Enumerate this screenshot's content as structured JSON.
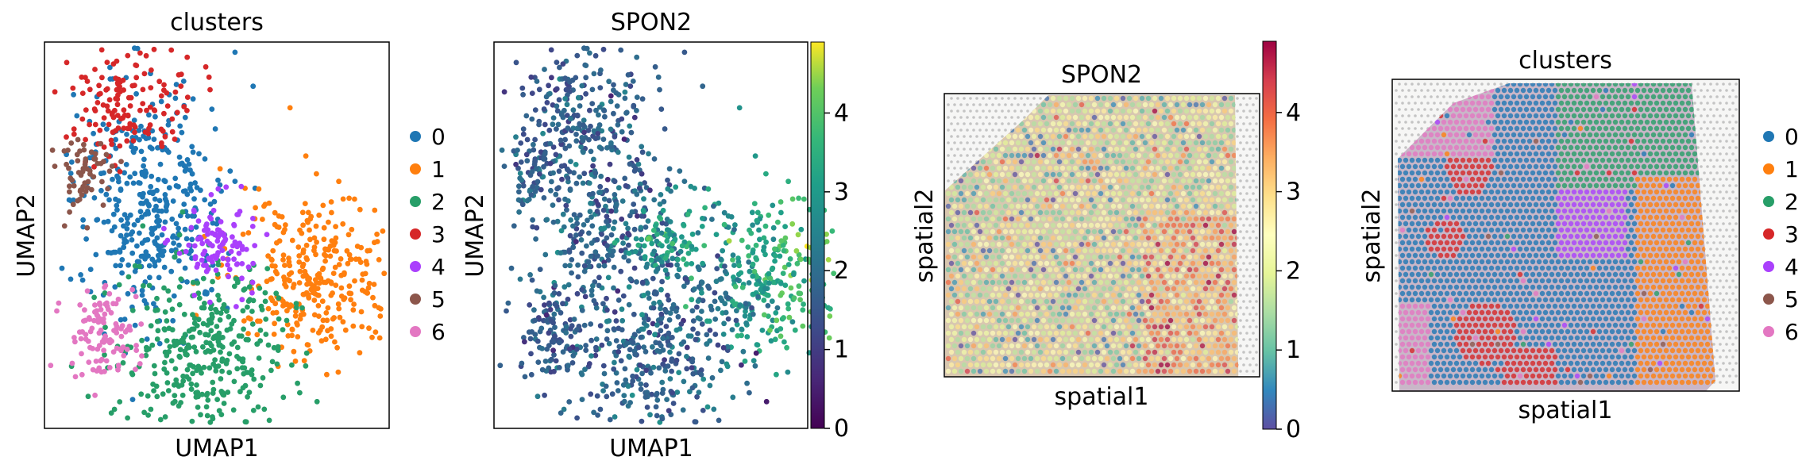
{
  "chart_data": [
    {
      "type": "scatter",
      "title": "clusters",
      "xlabel": "UMAP1",
      "ylabel": "UMAP2",
      "legend_title": "",
      "legend": [
        "0",
        "1",
        "2",
        "3",
        "4",
        "5",
        "6"
      ],
      "legend_position": "right",
      "colors": {
        "0": "#1f77b4",
        "1": "#ff7f0e",
        "2": "#279e68",
        "3": "#d62728",
        "4": "#aa40fc",
        "5": "#8c564b",
        "6": "#e377c2"
      },
      "grid": false
    },
    {
      "type": "scatter",
      "title": "SPON2",
      "xlabel": "UMAP1",
      "ylabel": "UMAP2",
      "colormap": "viridis",
      "colorbar_range": [
        0,
        4.9
      ],
      "colorbar_ticks": [
        "0",
        "1",
        "2",
        "3",
        "4"
      ],
      "grid": false
    },
    {
      "type": "scatter",
      "title": "SPON2",
      "xlabel": "spatial1",
      "ylabel": "spatial2",
      "colormap": "Spectral_r",
      "colorbar_range": [
        0,
        4.9
      ],
      "colorbar_ticks": [
        "0",
        "1",
        "2",
        "3",
        "4"
      ],
      "background": "tissue image",
      "grid": false
    },
    {
      "type": "scatter",
      "title": "clusters",
      "xlabel": "spatial1",
      "ylabel": "spatial2",
      "legend": [
        "0",
        "1",
        "2",
        "3",
        "4",
        "5",
        "6"
      ],
      "legend_position": "right",
      "colors": {
        "0": "#1f77b4",
        "1": "#ff7f0e",
        "2": "#279e68",
        "3": "#d62728",
        "4": "#aa40fc",
        "5": "#8c564b",
        "6": "#e377c2"
      },
      "background": "tissue image",
      "grid": false
    }
  ]
}
